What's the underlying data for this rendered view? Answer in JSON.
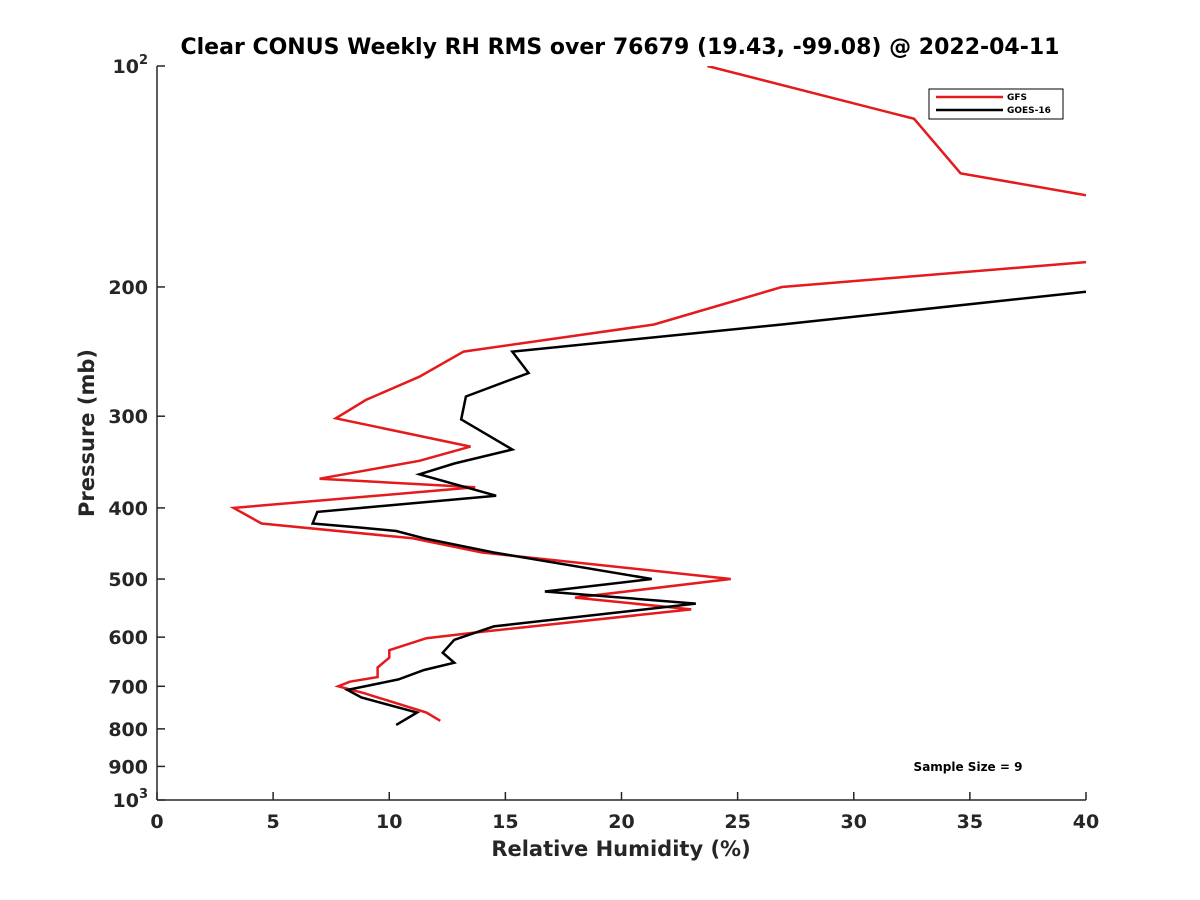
{
  "chart_data": {
    "type": "line",
    "title": "Clear CONUS Weekly RH RMS over 76679 (19.43, -99.08) @ 2022-04-11",
    "xlabel": "Relative Humidity (%)",
    "ylabel": "Pressure (mb)",
    "xlim": [
      0,
      40
    ],
    "ylim": [
      100,
      1000
    ],
    "y_scale": "log",
    "y_reversed": true,
    "x_ticks": [
      0,
      5,
      10,
      15,
      20,
      25,
      30,
      35,
      40
    ],
    "x_tick_labels": [
      "0",
      "5",
      "10",
      "15",
      "20",
      "25",
      "30",
      "35",
      "40"
    ],
    "y_ticks": [
      100,
      200,
      300,
      400,
      500,
      600,
      700,
      800,
      900,
      1000
    ],
    "y_tick_labels": [
      {
        "base": "10",
        "sup": "2"
      },
      {
        "base": "200",
        "sup": ""
      },
      {
        "base": "300",
        "sup": ""
      },
      {
        "base": "400",
        "sup": ""
      },
      {
        "base": "500",
        "sup": ""
      },
      {
        "base": "600",
        "sup": ""
      },
      {
        "base": "700",
        "sup": ""
      },
      {
        "base": "800",
        "sup": ""
      },
      {
        "base": "900",
        "sup": ""
      },
      {
        "base": "10",
        "sup": "3"
      }
    ],
    "grid": false,
    "legend_position": "top-right",
    "annotation": "Sample Size = 9",
    "series": [
      {
        "name": "GFS",
        "color": "#e41a1c",
        "points": [
          [
            12.2,
            780
          ],
          [
            11.6,
            760
          ],
          [
            8.9,
            715
          ],
          [
            7.8,
            700
          ],
          [
            8.3,
            690
          ],
          [
            9.5,
            680
          ],
          [
            9.5,
            660
          ],
          [
            10.0,
            640
          ],
          [
            10.0,
            625
          ],
          [
            11.6,
            602
          ],
          [
            14.0,
            590
          ],
          [
            23.0,
            550
          ],
          [
            18.0,
            530
          ],
          [
            24.7,
            500
          ],
          [
            14.0,
            460
          ],
          [
            11.0,
            440
          ],
          [
            4.5,
            420
          ],
          [
            3.3,
            400
          ],
          [
            13.7,
            375
          ],
          [
            7.0,
            365
          ],
          [
            11.3,
            345
          ],
          [
            13.5,
            330
          ],
          [
            7.7,
            302
          ],
          [
            9.0,
            285
          ],
          [
            11.3,
            265
          ],
          [
            13.2,
            245
          ],
          [
            21.4,
            225
          ],
          [
            26.9,
            200
          ],
          [
            40,
            185
          ]
        ],
        "upper_segment": [
          [
            23.7,
            100
          ],
          [
            32.6,
            118
          ],
          [
            34.6,
            140
          ],
          [
            40,
            150
          ]
        ]
      },
      {
        "name": "GOES-16",
        "color": "#000000",
        "points": [
          [
            10.3,
            790
          ],
          [
            11.2,
            760
          ],
          [
            8.8,
            725
          ],
          [
            8.2,
            708
          ],
          [
            10.4,
            685
          ],
          [
            11.5,
            665
          ],
          [
            12.8,
            650
          ],
          [
            12.3,
            630
          ],
          [
            12.8,
            605
          ],
          [
            14.5,
            580
          ],
          [
            17.7,
            565
          ],
          [
            23.2,
            540
          ],
          [
            16.7,
            520
          ],
          [
            21.3,
            500
          ],
          [
            14.5,
            460
          ],
          [
            11.5,
            440
          ],
          [
            10.3,
            430
          ],
          [
            8.6,
            425
          ],
          [
            6.7,
            420
          ],
          [
            6.9,
            405
          ],
          [
            14.6,
            385
          ],
          [
            11.3,
            360
          ],
          [
            12.8,
            348
          ],
          [
            15.3,
            333
          ],
          [
            13.1,
            303
          ],
          [
            13.3,
            282
          ],
          [
            16.0,
            262
          ],
          [
            15.3,
            245
          ],
          [
            26.9,
            225
          ],
          [
            40,
            203
          ]
        ]
      }
    ]
  }
}
